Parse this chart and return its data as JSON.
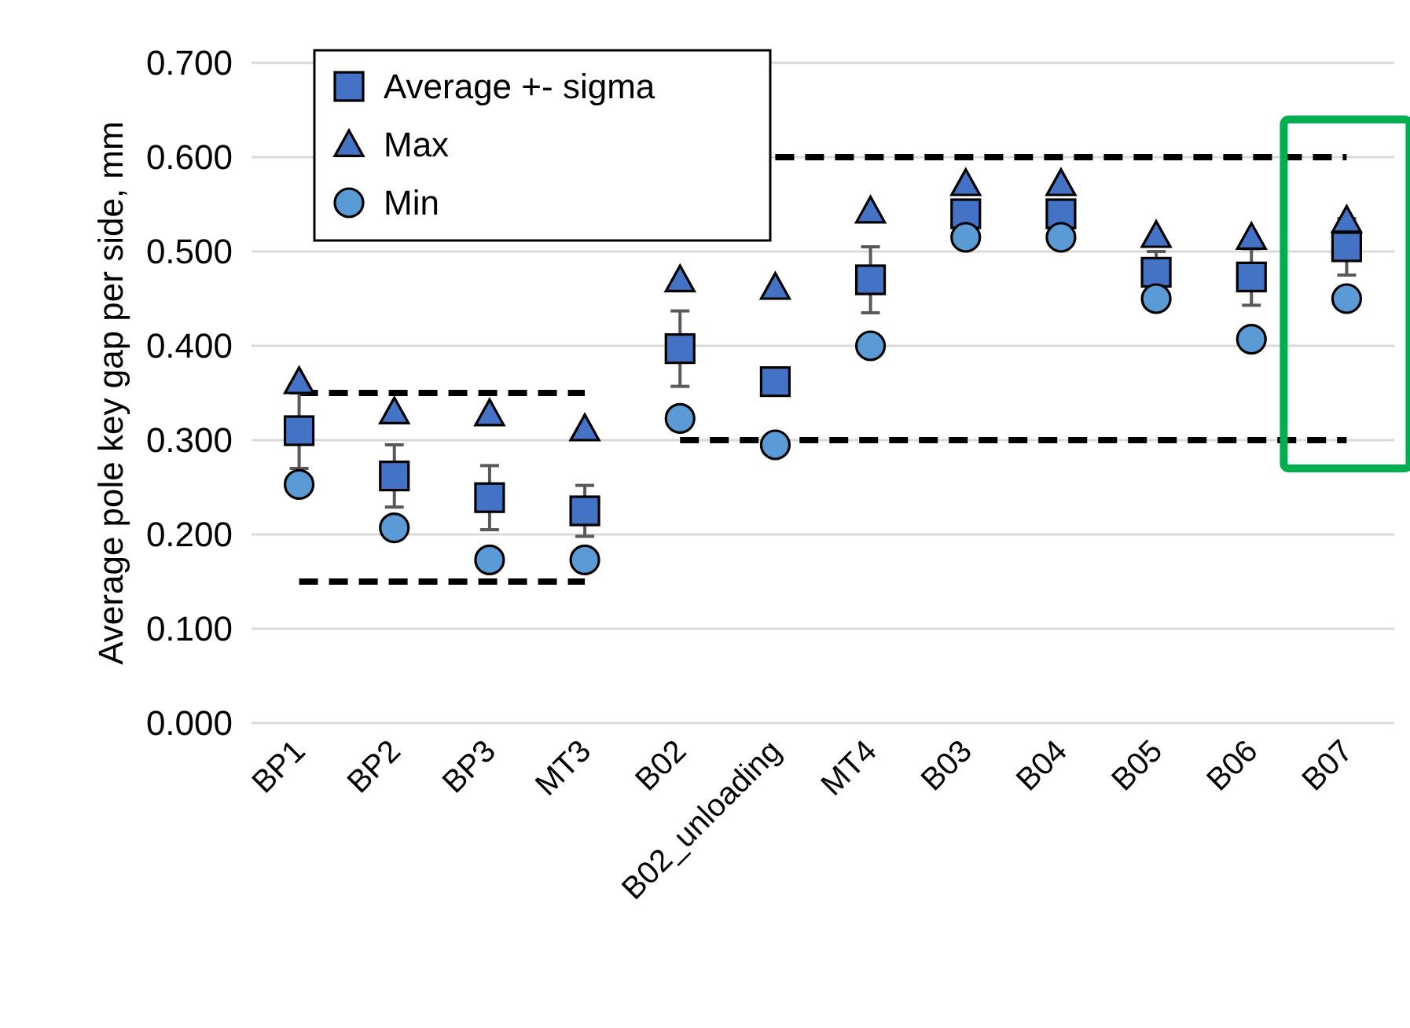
{
  "chart_data": {
    "type": "scatter",
    "ylabel": "Average pole key gap per side, mm",
    "categories": [
      "BP1",
      "BP2",
      "BP3",
      "MT3",
      "B02",
      "B02_unloading",
      "MT4",
      "B03",
      "B04",
      "B05",
      "B06",
      "B07"
    ],
    "series": [
      {
        "name": "Average +- sigma",
        "color": "#4472c4",
        "marker": "square",
        "values": [
          0.31,
          0.262,
          0.239,
          0.225,
          0.397,
          0.362,
          0.47,
          0.54,
          0.54,
          0.478,
          0.473,
          0.505
        ],
        "errors": [
          0.04,
          0.033,
          0.034,
          0.027,
          0.04,
          null,
          0.035,
          null,
          null,
          0.022,
          0.03,
          0.03
        ]
      },
      {
        "name": "Max",
        "color": "#4472c4",
        "marker": "triangle",
        "values": [
          0.362,
          0.33,
          0.328,
          0.312,
          0.47,
          0.462,
          0.543,
          0.572,
          0.572,
          0.517,
          0.515,
          0.533
        ]
      },
      {
        "name": "Min",
        "color": "#5b9bd5",
        "marker": "circle",
        "values": [
          0.253,
          0.207,
          0.173,
          0.173,
          0.323,
          0.295,
          0.4,
          0.515,
          0.515,
          0.45,
          0.407,
          0.45
        ]
      },
      {
        "type": "line",
        "color": "#000000",
        "line_style": "dashed",
        "values": [
          0.35,
          0.35,
          0.35,
          0.35,
          null,
          null,
          null,
          null,
          null,
          null,
          null,
          null
        ]
      },
      {
        "type": "line",
        "color": "#000000",
        "line_style": "dashed",
        "values": [
          0.15,
          0.15,
          0.15,
          0.15,
          null,
          null,
          null,
          null,
          null,
          null,
          null,
          null
        ]
      },
      {
        "type": "line",
        "color": "#000000",
        "line_style": "dashed",
        "values": [
          null,
          null,
          null,
          null,
          null,
          0.6,
          0.6,
          0.6,
          0.6,
          0.6,
          0.6,
          0.6
        ]
      },
      {
        "type": "line",
        "color": "#000000",
        "line_style": "dashed",
        "values": [
          null,
          null,
          null,
          null,
          0.3,
          0.3,
          0.3,
          0.3,
          0.3,
          0.3,
          0.3,
          0.3
        ]
      }
    ],
    "ylim": [
      0,
      0.7
    ],
    "yticks": [
      {
        "value": 0,
        "label": "0.000"
      },
      {
        "value": 0.1,
        "label": "0.100"
      },
      {
        "value": 0.2,
        "label": "0.200"
      },
      {
        "value": 0.3,
        "label": "0.300"
      },
      {
        "value": 0.4,
        "label": "0.400"
      },
      {
        "value": 0.5,
        "label": "0.500"
      },
      {
        "value": 0.6,
        "label": "0.600"
      },
      {
        "value": 0.7,
        "label": "0.700"
      }
    ],
    "grid": "y",
    "legend": "top left"
  }
}
